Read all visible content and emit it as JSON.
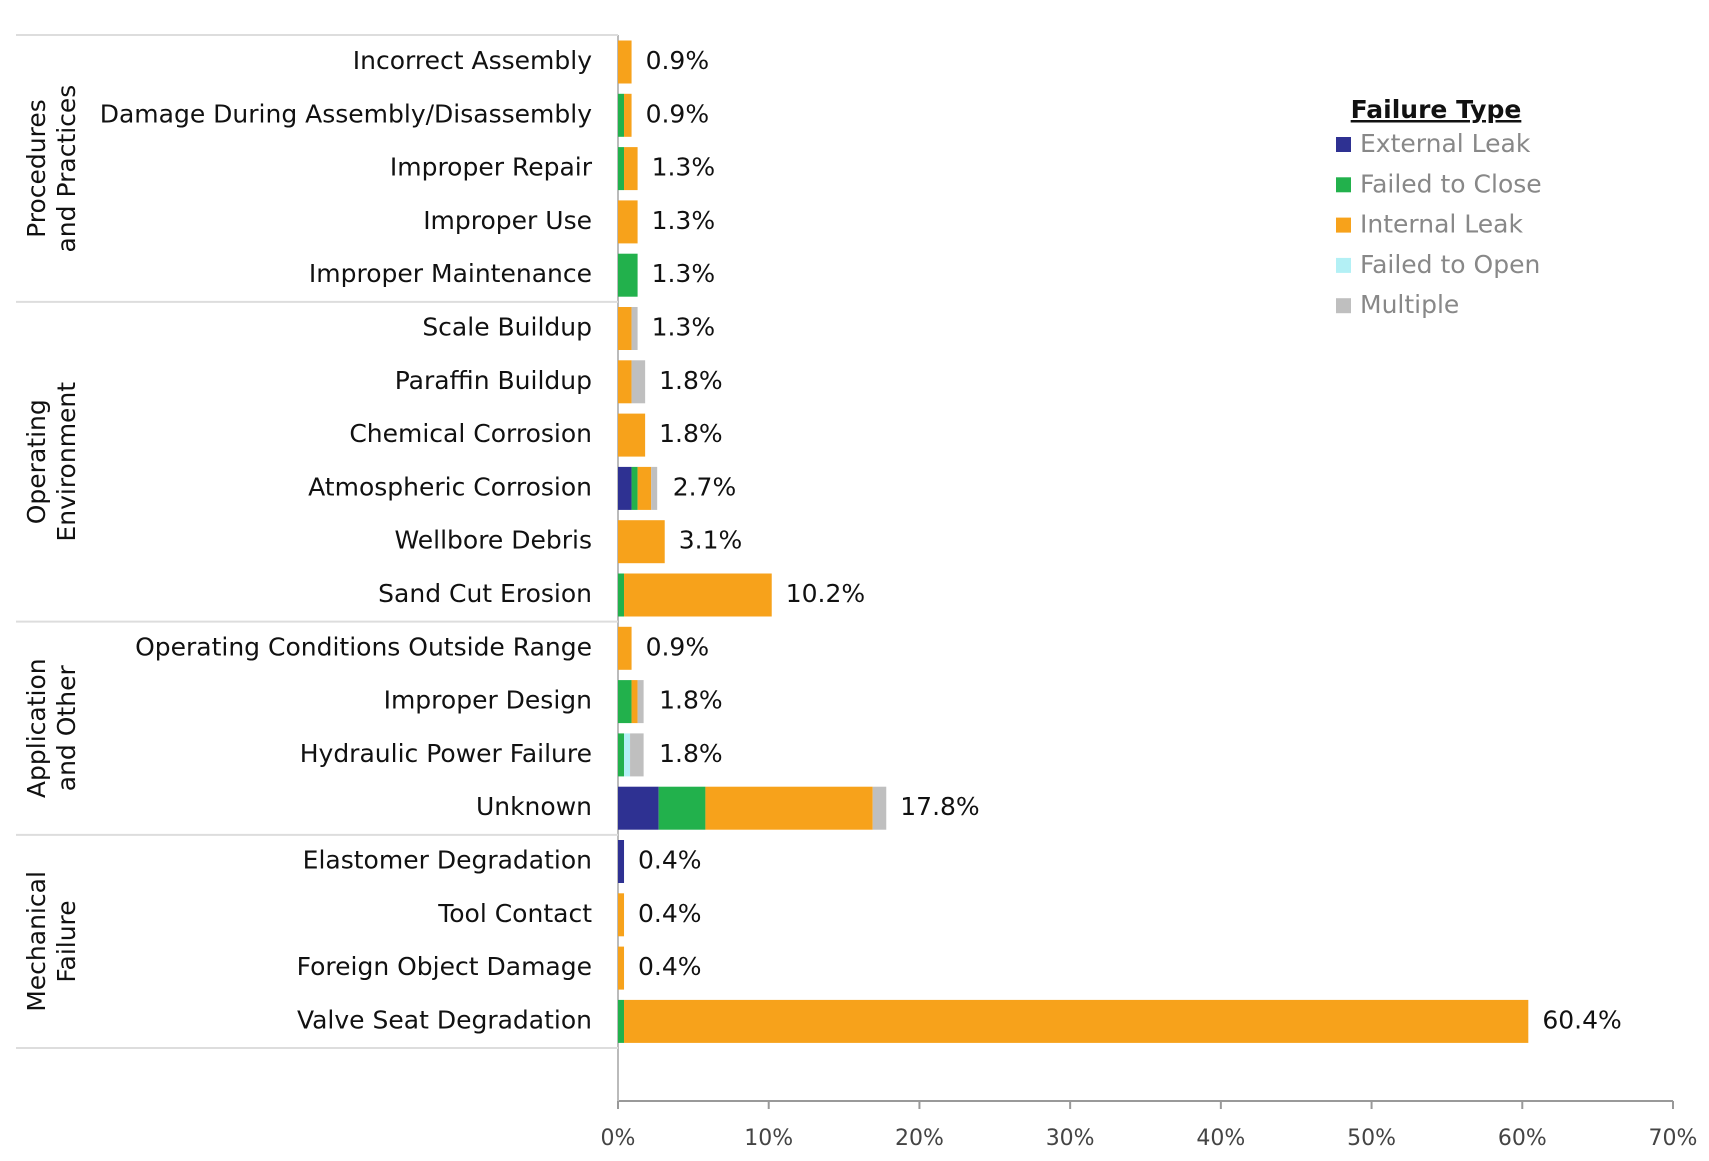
{
  "chart_data": {
    "type": "stacked-barh",
    "categories": [
      "Incorrect Assembly",
      "Damage During Assembly/Disassembly",
      "Improper Repair",
      "Improper Use",
      "Improper Maintenance",
      "Scale Buildup",
      "Paraffin Buildup",
      "Chemical Corrosion",
      "Atmospheric Corrosion",
      "Wellbore Debris",
      "Sand Cut Erosion",
      "Operating Conditions Outside Range",
      "Improper Design",
      "Hydraulic Power Failure",
      "Unknown",
      "Elastomer Degradation",
      "Tool Contact",
      "Foreign Object Damage",
      "Valve Seat Degradation"
    ],
    "groups": [
      [
        "Procedures",
        "and Practices"
      ],
      [
        "Operating",
        "Environment"
      ],
      [
        "Application",
        "and Other"
      ],
      [
        "Mechanical",
        "Failure"
      ]
    ],
    "series": [
      {
        "name": "External Leak",
        "color": "#2e3192",
        "values": [
          0,
          0,
          0,
          0,
          0,
          0,
          0,
          0,
          0.9,
          0,
          0,
          0,
          0,
          0,
          2.7,
          0.4,
          0,
          0,
          0
        ]
      },
      {
        "name": "Failed to Close",
        "color": "#22b14c",
        "values": [
          0,
          0.4,
          0.4,
          0,
          1.3,
          0,
          0,
          0,
          0.4,
          0,
          0.4,
          0,
          0.9,
          0.4,
          3.1,
          0,
          0,
          0,
          0.4
        ]
      },
      {
        "name": "Internal Leak",
        "color": "#f7a21b",
        "values": [
          0.9,
          0.5,
          0.9,
          1.3,
          0,
          0.9,
          0.9,
          1.8,
          0.9,
          3.1,
          9.8,
          0.9,
          0.4,
          0,
          11.1,
          0,
          0.4,
          0.4,
          60.0
        ]
      },
      {
        "name": "Failed to Open",
        "color": "#b3f0f5",
        "values": [
          0,
          0,
          0,
          0,
          0,
          0,
          0,
          0,
          0,
          0,
          0,
          0,
          0,
          0.4,
          0,
          0,
          0,
          0,
          0
        ]
      },
      {
        "name": "Multiple",
        "color": "#bfbfbf",
        "values": [
          0,
          0,
          0,
          0,
          0,
          0.4,
          0.9,
          0,
          0.4,
          0,
          0,
          0,
          0.4,
          0.9,
          0.9,
          0,
          0,
          0,
          0
        ]
      }
    ],
    "totals": [
      0.9,
      0.9,
      1.3,
      1.3,
      1.3,
      1.3,
      1.8,
      1.8,
      2.7,
      3.1,
      10.2,
      0.9,
      1.8,
      1.8,
      17.8,
      0.4,
      0.4,
      0.4,
      60.4
    ],
    "total_labels": [
      "0.9%",
      "0.9%",
      "1.3%",
      "1.3%",
      "1.3%",
      "1.3%",
      "1.8%",
      "1.8%",
      "2.7%",
      "3.1%",
      "10.2%",
      "0.9%",
      "1.8%",
      "1.8%",
      "17.8%",
      "0.4%",
      "0.4%",
      "0.4%",
      "60.4%"
    ],
    "legend_title": "Failure Type",
    "xlim": [
      0,
      70
    ],
    "xticks": [
      {
        "value": 0,
        "label": "0%"
      },
      {
        "value": 10,
        "label": "10%"
      },
      {
        "value": 20,
        "label": "20%"
      },
      {
        "value": 30,
        "label": "30%"
      },
      {
        "value": 40,
        "label": "40%"
      },
      {
        "value": 50,
        "label": "50%"
      },
      {
        "value": 60,
        "label": "60%"
      },
      {
        "value": 70,
        "label": "70%"
      }
    ]
  }
}
